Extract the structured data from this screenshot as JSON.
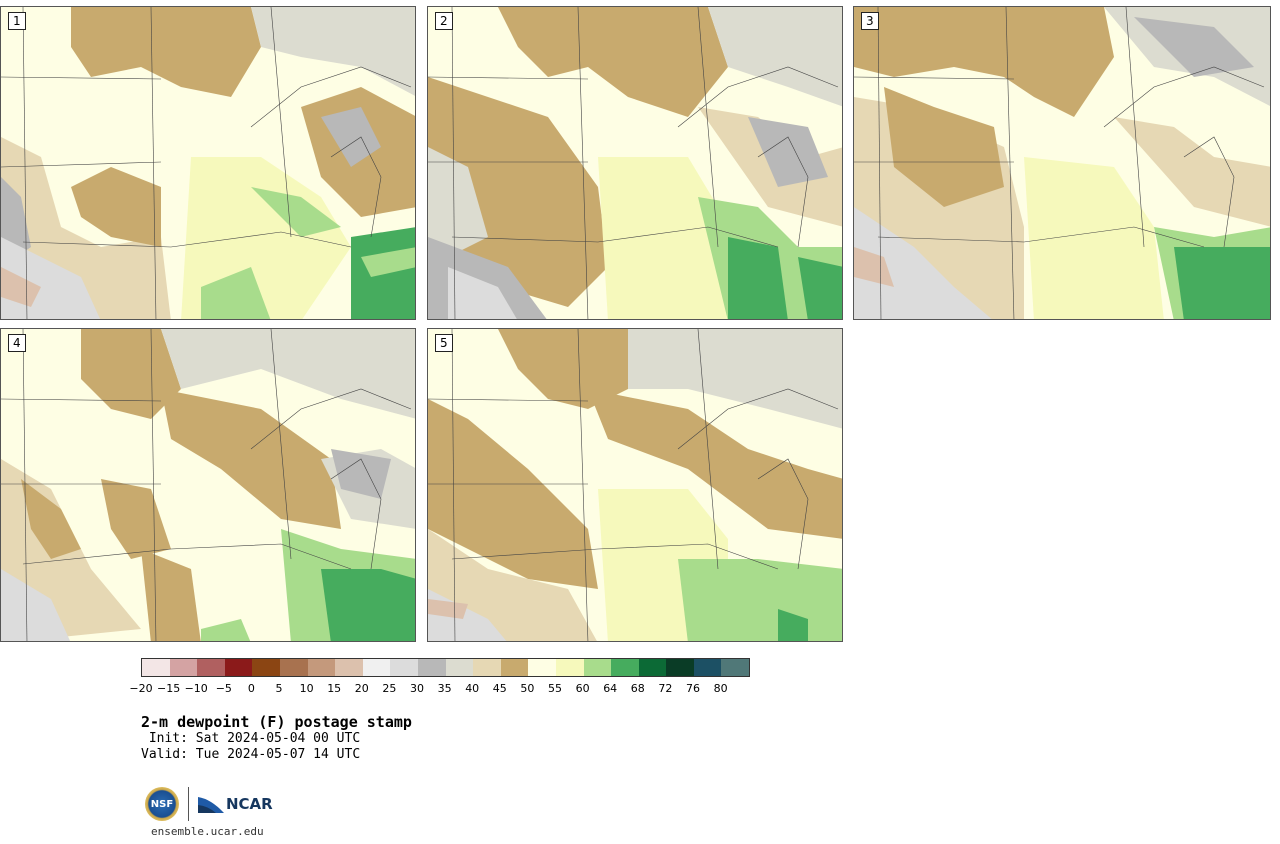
{
  "panels": [
    {
      "label": "1"
    },
    {
      "label": "2"
    },
    {
      "label": "3"
    },
    {
      "label": "4"
    },
    {
      "label": "5"
    }
  ],
  "colorbar": {
    "ticks": [
      "−20",
      "−15",
      "−10",
      "−5",
      "0",
      "5",
      "10",
      "15",
      "20",
      "25",
      "30",
      "35",
      "40",
      "45",
      "50",
      "55",
      "60",
      "64",
      "68",
      "72",
      "76",
      "80"
    ],
    "colors": [
      "#f3e6e6",
      "#d4a3a3",
      "#b06060",
      "#8b1a1a",
      "#8b4513",
      "#a8724f",
      "#c4997c",
      "#dcc1ad",
      "#f0f0f0",
      "#dcdcdc",
      "#b8b8b8",
      "#dcdcd0",
      "#e6d8b4",
      "#c8aa6e",
      "#fefee4",
      "#f6f9bc",
      "#a8dc8c",
      "#46ac5e",
      "#0c6a36",
      "#0a3c26",
      "#1c5064",
      "#507878"
    ]
  },
  "title": "2-m dewpoint (F) postage stamp",
  "init": " Init: Sat 2024-05-04 00 UTC",
  "valid": "Valid: Tue 2024-05-07 14 UTC",
  "logos": {
    "nsf": "NSF",
    "ncar": "NCAR"
  },
  "site": "ensemble.ucar.edu"
}
